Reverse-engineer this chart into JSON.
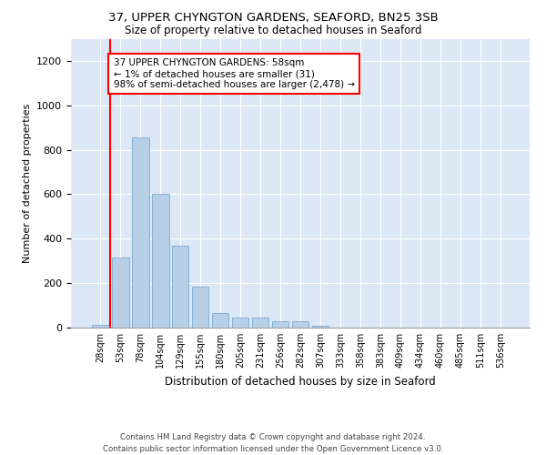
{
  "title1": "37, UPPER CHYNGTON GARDENS, SEAFORD, BN25 3SB",
  "title2": "Size of property relative to detached houses in Seaford",
  "xlabel": "Distribution of detached houses by size in Seaford",
  "ylabel": "Number of detached properties",
  "bar_color": "#b8cfe8",
  "bar_edge_color": "#7aaad0",
  "background_color": "#dce8f5",
  "annotation_text": "37 UPPER CHYNGTON GARDENS: 58sqm\n← 1% of detached houses are smaller (31)\n98% of semi-detached houses are larger (2,478) →",
  "vline_x_index": 0.5,
  "categories": [
    "28sqm",
    "53sqm",
    "78sqm",
    "104sqm",
    "129sqm",
    "155sqm",
    "180sqm",
    "205sqm",
    "231sqm",
    "256sqm",
    "282sqm",
    "307sqm",
    "333sqm",
    "358sqm",
    "383sqm",
    "409sqm",
    "434sqm",
    "460sqm",
    "485sqm",
    "511sqm",
    "536sqm"
  ],
  "values": [
    12,
    315,
    855,
    600,
    370,
    185,
    65,
    45,
    45,
    30,
    30,
    10,
    0,
    0,
    0,
    0,
    0,
    0,
    0,
    0,
    0
  ],
  "ylim": [
    0,
    1300
  ],
  "yticks": [
    0,
    200,
    400,
    600,
    800,
    1000,
    1200
  ],
  "footer": "Contains HM Land Registry data © Crown copyright and database right 2024.\nContains public sector information licensed under the Open Government Licence v3.0."
}
